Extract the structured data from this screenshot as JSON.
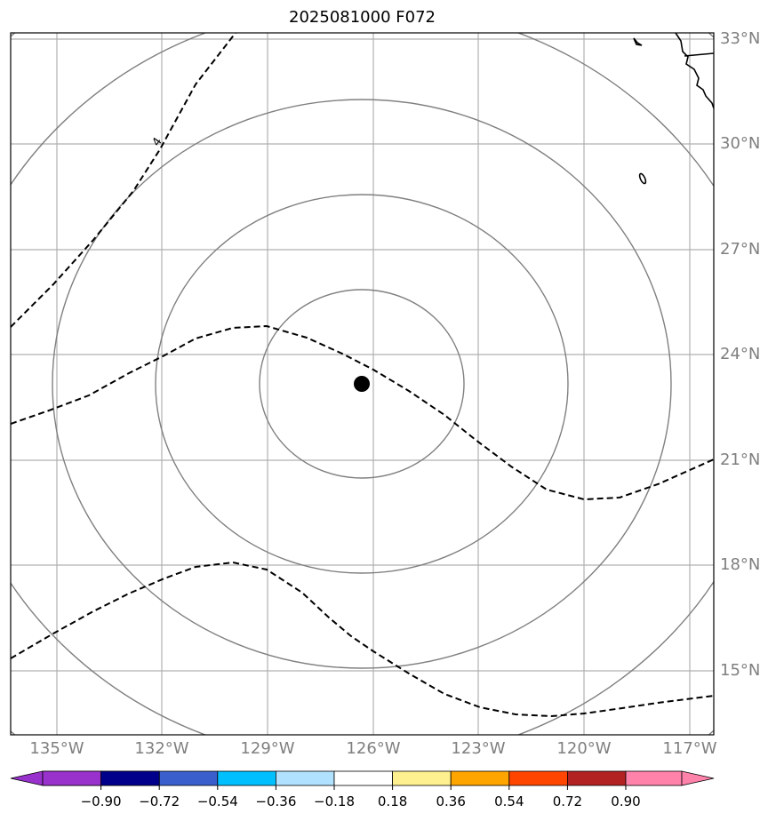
{
  "title": "2025081000 F072",
  "map": {
    "lat_labels": [
      "33°N",
      "30°N",
      "27°N",
      "24°N",
      "21°N",
      "18°N",
      "15°N"
    ],
    "lon_labels": [
      "135°W",
      "132°W",
      "129°W",
      "126°W",
      "123°W",
      "120°W",
      "117°W"
    ],
    "contour_label": "4",
    "colors": {
      "gridline": "#b0b0b0",
      "range_ring": "#808080",
      "dashed_contour": "#000000",
      "coastline": "#000000",
      "center_marker": "#000000",
      "tick_label": "#7f7f7f"
    },
    "range_rings": 5,
    "center_marker": "storm-center-dot"
  },
  "colorbar": {
    "tick_labels": [
      "−0.90",
      "−0.72",
      "−0.54",
      "−0.36",
      "−0.18",
      "0.18",
      "0.36",
      "0.54",
      "0.72",
      "0.90"
    ],
    "colors": [
      "#9932cc",
      "#00008b",
      "#3a5fcd",
      "#00bfff",
      "#b0e2ff",
      "#ffffff",
      "#fff08f",
      "#ffa500",
      "#ff4500",
      "#b22222",
      "#ff82ab"
    ],
    "extend": "both"
  }
}
